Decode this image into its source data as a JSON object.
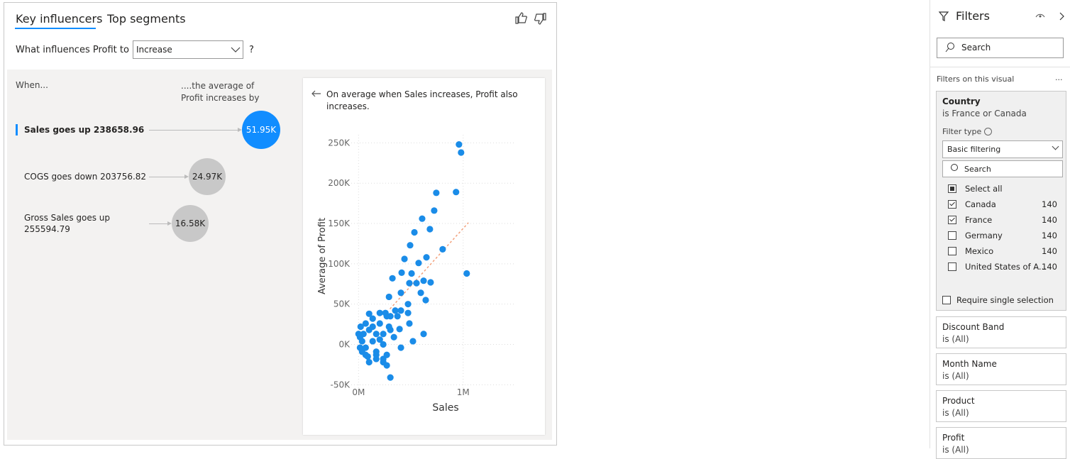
{
  "tabs": [
    "Key influencers",
    "Top segments"
  ],
  "question": {
    "label": "What influences Profit to",
    "choice": "Increase",
    "help": "?"
  },
  "columns": {
    "when": "When...",
    "effect": "....the average of Profit increases by"
  },
  "influencers": [
    {
      "label": "Sales goes up 238658.96",
      "value": "51.95K",
      "selected": true
    },
    {
      "label": "COGS goes down 203756.82",
      "value": "24.97K",
      "selected": false
    },
    {
      "label": "Gross Sales goes up 255594.79",
      "value": "16.58K",
      "selected": false
    }
  ],
  "chart_data": {
    "type": "scatter",
    "title": "On average when Sales increases, Profit also increases.",
    "x_label": "Sales",
    "y_label": "Average of Profit",
    "color": "#1a8ce8",
    "x": [
      960000,
      980000,
      932000,
      743000,
      723000,
      608000,
      534000,
      682000,
      804000,
      493000,
      1034000,
      649000,
      574000,
      439000,
      507000,
      412000,
      324000,
      486000,
      554000,
      622000,
      689000,
      595000,
      405000,
      291000,
      642000,
      473000,
      405000,
      351000,
      257000,
      203000,
      101000,
      304000,
      486000,
      304000,
      236000,
      338000,
      520000,
      622000,
      405000,
      270000,
      169000,
      88000,
      236000,
      270000,
      101000,
      169000,
      34000,
      47000,
      20000,
      68000,
      135000,
      203000,
      34000,
      14000,
      68000,
      135000,
      236000,
      169000,
      101000,
      291000,
      392000,
      473000,
      169000,
      304000,
      236000,
      135000,
      0,
      14000,
      68000,
      203000,
      270000,
      372000
    ],
    "values": [
      248000,
      238000,
      189000,
      188000,
      166000,
      156000,
      139000,
      143000,
      118000,
      123000,
      88000,
      108000,
      101000,
      106000,
      88000,
      89000,
      82000,
      76000,
      76000,
      79000,
      77000,
      64000,
      64000,
      59000,
      55000,
      50000,
      42000,
      42000,
      39000,
      39000,
      38000,
      35000,
      26000,
      18000,
      13000,
      9000,
      4000,
      13000,
      -4000,
      -13000,
      -13000,
      -15000,
      -22000,
      -26000,
      -22000,
      -9000,
      4000,
      13000,
      22000,
      26000,
      32000,
      26000,
      -9000,
      9000,
      -4000,
      4000,
      0,
      13000,
      18000,
      22000,
      19000,
      39000,
      -18000,
      -41000,
      -18000,
      22000,
      13000,
      -4000,
      -13000,
      6000,
      35000,
      35000
    ],
    "trend_line": {
      "color": "#f2a07b",
      "x": [
        300000,
        1050000
      ],
      "y": [
        44000,
        151000
      ]
    },
    "xlim": [
      -70000,
      1490000
    ],
    "ylim": [
      -55000,
      260000
    ],
    "xticks": [
      {
        "value": 0,
        "label": "0M"
      },
      {
        "value": 1000000,
        "label": "1M"
      }
    ],
    "yticks": [
      {
        "value": -50000,
        "label": "-50K"
      },
      {
        "value": 0,
        "label": "0K"
      },
      {
        "value": 50000,
        "label": "50K"
      },
      {
        "value": 100000,
        "label": "100K"
      },
      {
        "value": 150000,
        "label": "150K"
      },
      {
        "value": 200000,
        "label": "200K"
      },
      {
        "value": 250000,
        "label": "250K"
      }
    ],
    "grid": true
  },
  "filters": {
    "title": "Filters",
    "search": "Search",
    "section": "Filters on this visual",
    "more": "...",
    "cards": [
      {
        "field": "Country",
        "summary": "is France or Canada",
        "filter_type_label": "Filter type",
        "filter_type": "Basic filtering",
        "search": "Search",
        "items": [
          {
            "label": "Select all",
            "state": "partial"
          },
          {
            "label": "Canada",
            "count": 140,
            "state": "checked"
          },
          {
            "label": "France",
            "count": 140,
            "state": "checked"
          },
          {
            "label": "Germany",
            "count": 140,
            "state": "unchecked"
          },
          {
            "label": "Mexico",
            "count": 140,
            "state": "unchecked"
          },
          {
            "label": "United States of A...",
            "count": 140,
            "state": "unchecked"
          }
        ],
        "require_single": "Require single selection"
      },
      {
        "field": "Discount Band",
        "summary": "is (All)"
      },
      {
        "field": "Month Name",
        "summary": "is (All)"
      },
      {
        "field": "Product",
        "summary": "is (All)"
      },
      {
        "field": "Profit",
        "summary": "is (All)"
      }
    ]
  }
}
